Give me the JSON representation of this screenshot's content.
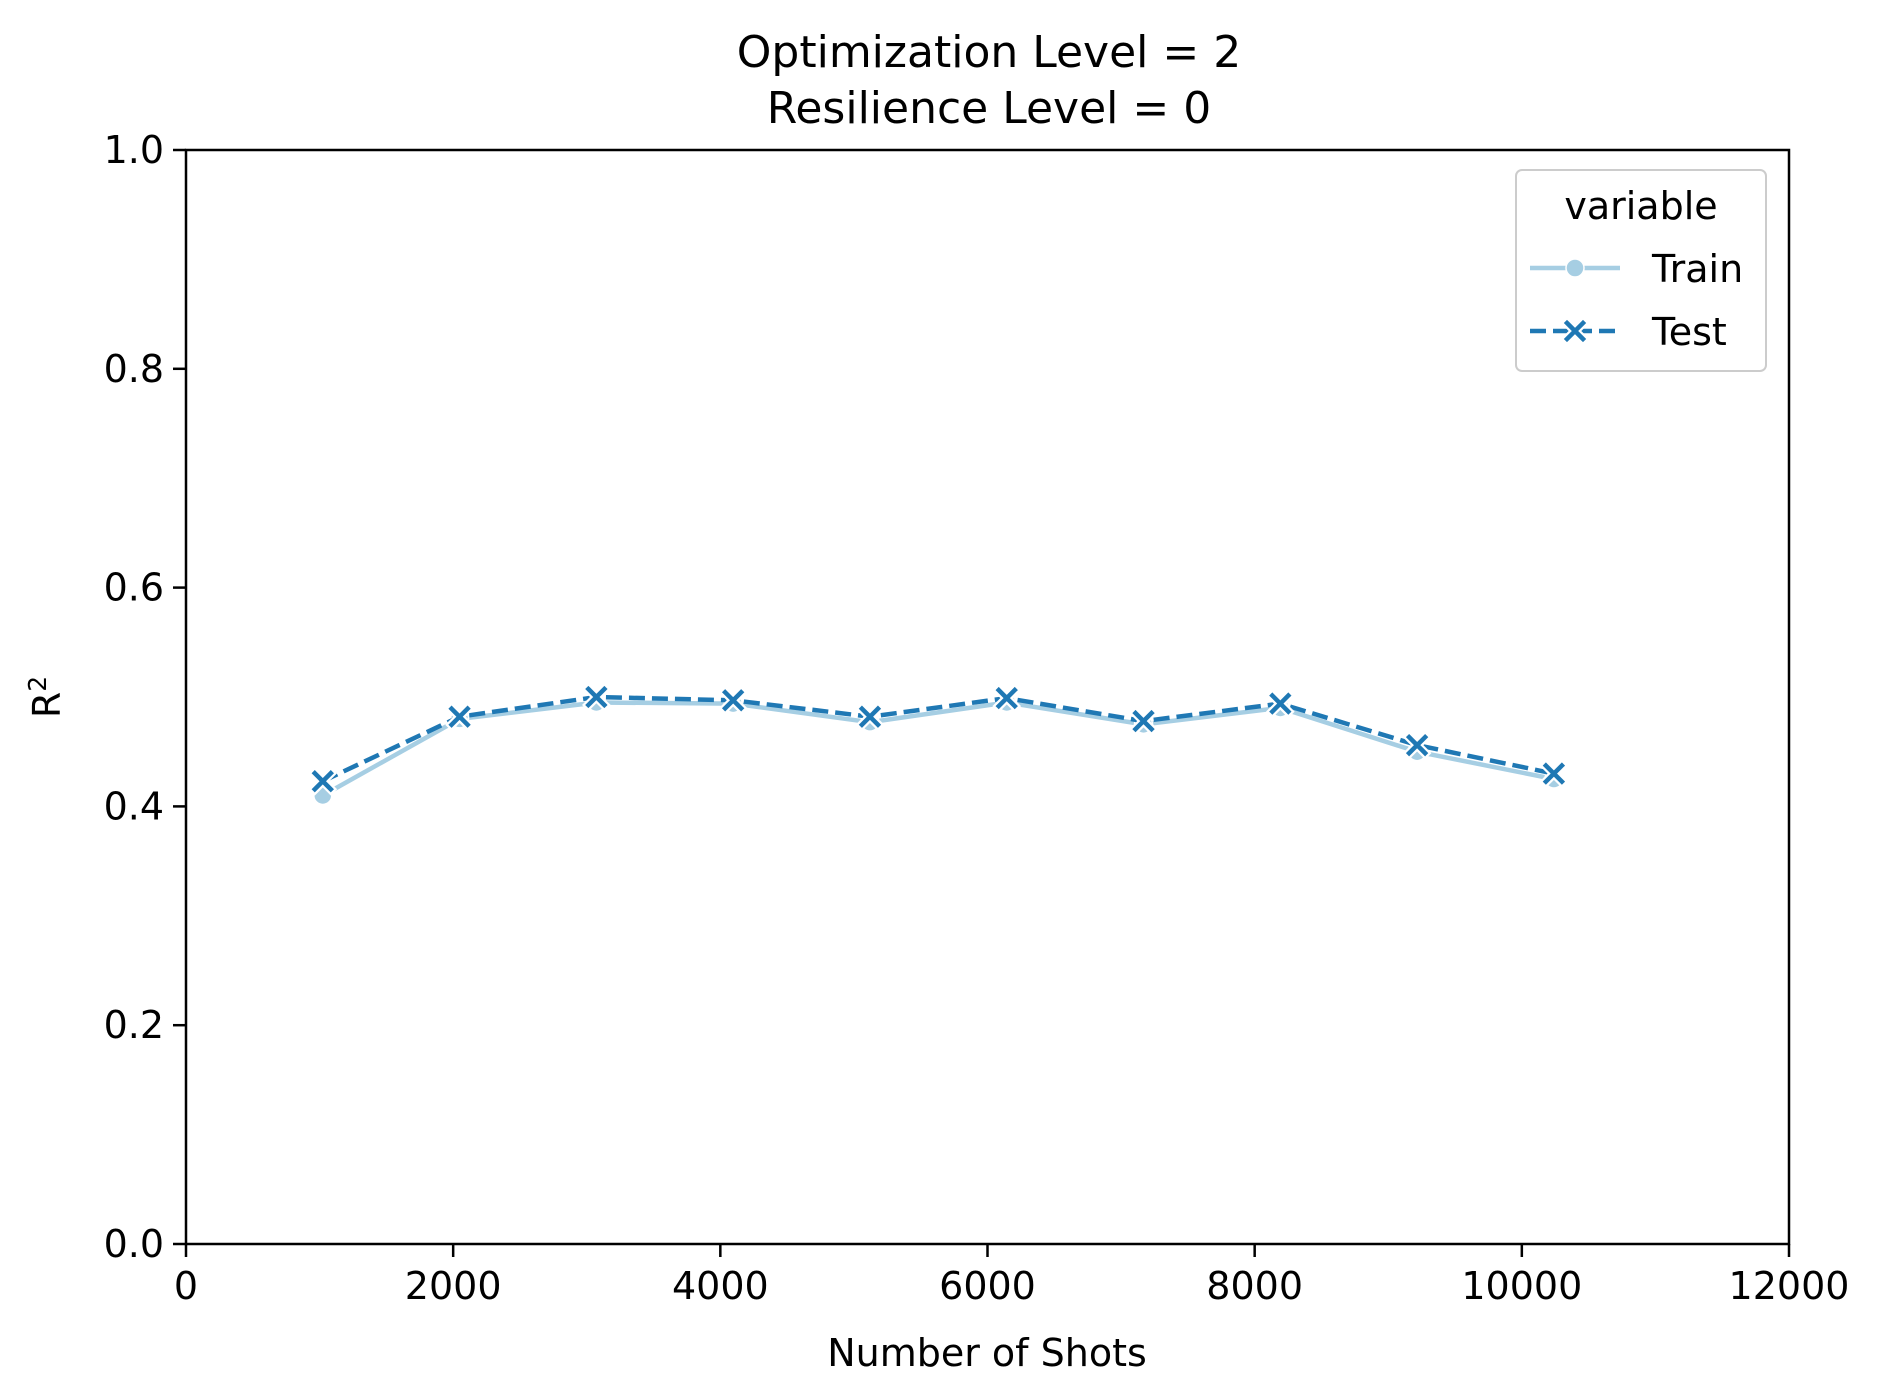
{
  "chart_data": {
    "type": "line",
    "title_lines": [
      "Optimization Level = 2",
      "Resilience Level = 0"
    ],
    "xlabel": "Number of Shots",
    "ylabel": "R",
    "ylabel_superscript": "2",
    "xlim": [
      0,
      12000
    ],
    "ylim": [
      0.0,
      1.0
    ],
    "x_ticks": [
      0,
      2000,
      4000,
      6000,
      8000,
      10000,
      12000
    ],
    "x_tick_labels": [
      "0",
      "2000",
      "4000",
      "6000",
      "8000",
      "10000",
      "12000"
    ],
    "y_ticks": [
      0.0,
      0.2,
      0.4,
      0.6,
      0.8,
      1.0
    ],
    "y_tick_labels": [
      "0.0",
      "0.2",
      "0.4",
      "0.6",
      "0.8",
      "1.0"
    ],
    "grid": false,
    "legend": {
      "title": "variable",
      "placement": "top-right"
    },
    "x": [
      1024,
      2048,
      3072,
      4096,
      5120,
      6144,
      7168,
      8192,
      9216,
      10240
    ],
    "series": [
      {
        "name": "Train",
        "color": "#a6cee3",
        "marker": "circle",
        "line_style": "solid",
        "values": [
          0.41,
          0.48,
          0.495,
          0.494,
          0.477,
          0.495,
          0.475,
          0.49,
          0.45,
          0.425
        ]
      },
      {
        "name": "Test",
        "color": "#1f78b4",
        "marker": "x",
        "line_style": "dashed",
        "values": [
          0.423,
          0.482,
          0.5,
          0.497,
          0.482,
          0.499,
          0.478,
          0.494,
          0.456,
          0.43
        ]
      }
    ]
  }
}
